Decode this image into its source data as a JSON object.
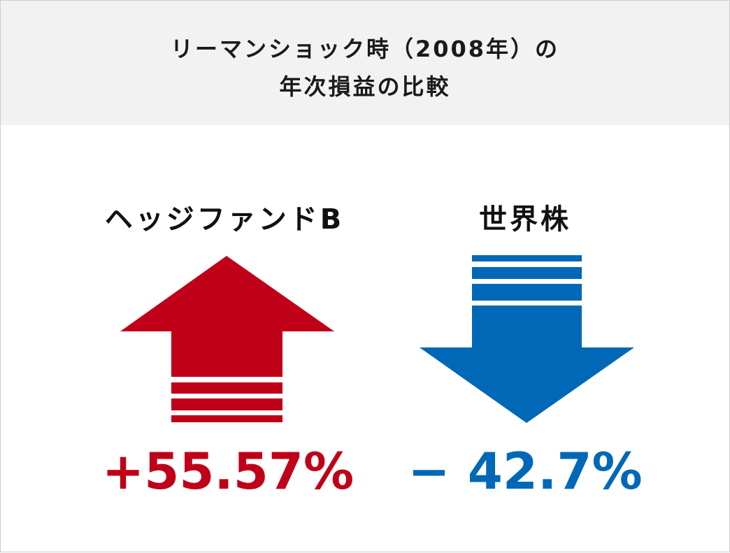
{
  "title_line1": "リーマンショック時（2008年）の",
  "title_line2": "年次損益の比較",
  "colors": {
    "up": "#c00018",
    "down": "#0068b7",
    "header_bg": "#f2f2f2"
  },
  "chart_data": {
    "type": "bar",
    "title": "リーマンショック時（2008年）の年次損益の比較",
    "categories": [
      "ヘッジファンドB",
      "世界株"
    ],
    "values": [
      55.57,
      -42.7
    ],
    "labels": [
      "+55.57%",
      "− 42.7%"
    ],
    "unit": "%",
    "icons": [
      "arrow-up-icon",
      "arrow-down-icon"
    ]
  }
}
